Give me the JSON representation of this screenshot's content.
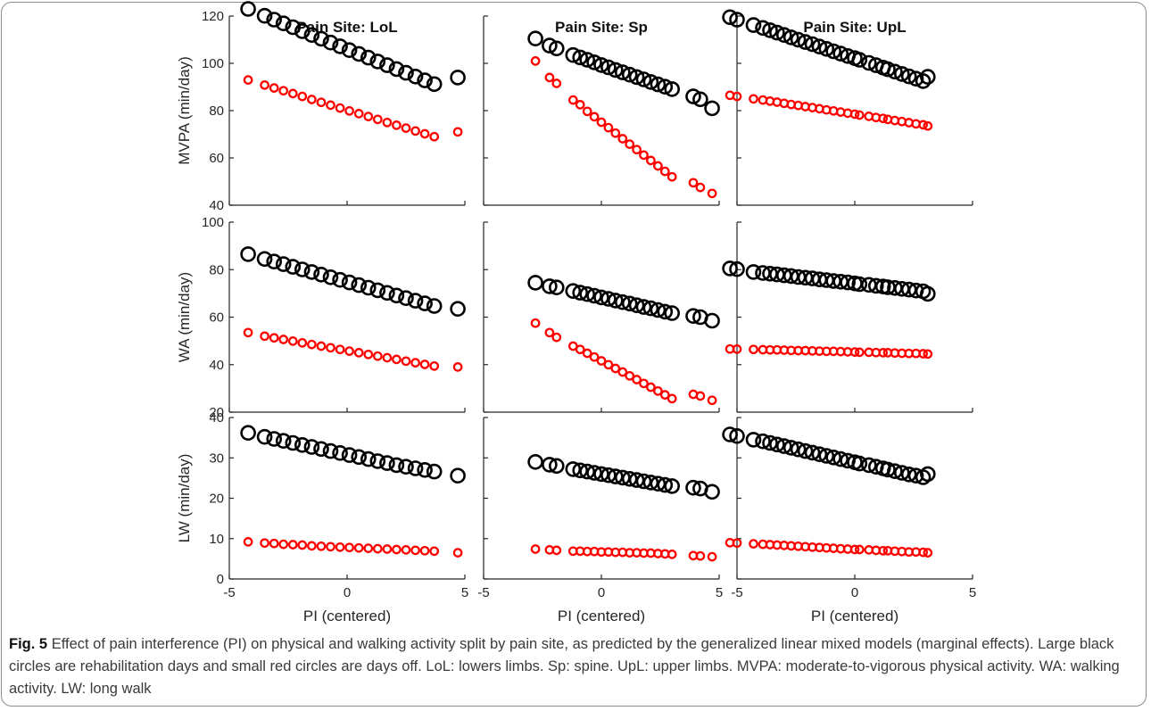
{
  "figure": {
    "caption_label": "Fig. 5",
    "caption_text": "Effect of pain interference (PI) on physical and walking activity split by pain site, as predicted by the generalized linear mixed models (marginal effects). Large black circles are rehabilitation days and small red circles are days off. LoL: lowers limbs. Sp: spine. UpL: upper limbs. MVPA: moderate-to-vigorous physical activity. WA: walking activity. LW: long walk"
  },
  "colors": {
    "rehab": "#000000",
    "off": "#ff0000",
    "axis": "#262626"
  },
  "chart_data": {
    "type": "scatter",
    "columns": [
      "Pain Site: LoL",
      "Pain Site: Sp",
      "Pain Site: UpL"
    ],
    "rows": [
      "MVPA (min/day)",
      "WA (min/day)",
      "LW (min/day)"
    ],
    "xlabel": "PI (centered)",
    "xlim": [
      -5,
      5
    ],
    "xticks": [
      -5,
      0,
      5
    ],
    "grid": false,
    "panels": [
      {
        "row": 0,
        "col": 0,
        "ylim": [
          40,
          120
        ],
        "yticks": [
          40,
          60,
          80,
          100,
          120
        ],
        "x": [
          -4.2,
          -3.5,
          -3.1,
          -2.7,
          -2.3,
          -1.9,
          -1.5,
          -1.1,
          -0.7,
          -0.3,
          0.1,
          0.5,
          0.9,
          1.3,
          1.7,
          2.1,
          2.5,
          2.9,
          3.3,
          3.7,
          4.7
        ],
        "series": [
          {
            "name": "rehab",
            "values": [
              123,
              120.1,
              118.5,
              116.9,
              115.3,
              113.6,
              112.0,
              110.4,
              108.8,
              107.2,
              105.6,
              104.0,
              102.4,
              100.8,
              99.2,
              97.6,
              96.0,
              94.4,
              92.8,
              91.2,
              94
            ]
          },
          {
            "name": "off",
            "values": [
              93,
              90.8,
              89.6,
              88.4,
              87.2,
              86.0,
              84.7,
              83.5,
              82.3,
              81.1,
              79.9,
              78.7,
              77.5,
              76.3,
              75.0,
              73.8,
              72.6,
              71.4,
              70.2,
              69.0,
              71
            ]
          }
        ]
      },
      {
        "row": 0,
        "col": 1,
        "ylim": [
          40,
          120
        ],
        "yticks": [
          40,
          60,
          80,
          100,
          120
        ],
        "x": [
          -2.8,
          -2.2,
          -1.9,
          -1.2,
          -0.9,
          -0.6,
          -0.3,
          0.0,
          0.3,
          0.6,
          0.9,
          1.2,
          1.5,
          1.8,
          2.1,
          2.4,
          2.7,
          3.0,
          3.9,
          4.2,
          4.7
        ],
        "series": [
          {
            "name": "rehab",
            "values": [
              110.5,
              107.5,
              106.3,
              103.5,
              102.5,
              101.5,
              100.4,
              99.3,
              98.3,
              97.2,
              96.2,
              95.2,
              94.2,
              93.2,
              92.1,
              91.1,
              90.1,
              89.1,
              86.0,
              84.8,
              81
            ]
          },
          {
            "name": "off",
            "values": [
              101,
              94,
              91.5,
              84.5,
              82.5,
              79.7,
              77.4,
              75.1,
              72.8,
              70.5,
              68.1,
              65.8,
              63.5,
              61.2,
              58.9,
              56.6,
              54.3,
              52.0,
              49.5,
              47.5,
              45
            ]
          }
        ]
      },
      {
        "row": 0,
        "col": 2,
        "ylim": [
          40,
          120
        ],
        "yticks": [
          40,
          60,
          80,
          100,
          120
        ],
        "x": [
          -5.3,
          -5.0,
          -4.3,
          -3.9,
          -3.6,
          -3.3,
          -3.0,
          -2.7,
          -2.4,
          -2.1,
          -1.8,
          -1.5,
          -1.2,
          -0.9,
          -0.6,
          -0.3,
          0.0,
          0.2,
          0.6,
          0.9,
          1.2,
          1.4,
          1.7,
          2.0,
          2.3,
          2.6,
          2.9,
          3.1
        ],
        "series": [
          {
            "name": "rehab",
            "values": [
              119.5,
              118.5,
              116.2,
              115.0,
              114.0,
              113.0,
              112.0,
              111.0,
              110.0,
              109.0,
              108.1,
              107.1,
              106.1,
              105.1,
              104.1,
              103.1,
              102.2,
              101.5,
              100.2,
              99.2,
              98.2,
              97.5,
              96.5,
              95.5,
              94.5,
              93.5,
              92.5,
              94.3
            ]
          },
          {
            "name": "off",
            "values": [
              86.5,
              86.0,
              85.0,
              84.5,
              84.0,
              83.6,
              83.1,
              82.6,
              82.2,
              81.7,
              81.3,
              80.8,
              80.3,
              79.9,
              79.4,
              78.9,
              78.5,
              78.1,
              77.6,
              77.1,
              76.7,
              76.3,
              75.8,
              75.4,
              74.9,
              74.4,
              74.0,
              73.5
            ]
          }
        ]
      },
      {
        "row": 1,
        "col": 0,
        "ylim": [
          20,
          100
        ],
        "yticks": [
          20,
          40,
          60,
          80,
          100
        ],
        "x": [
          -4.2,
          -3.5,
          -3.1,
          -2.7,
          -2.3,
          -1.9,
          -1.5,
          -1.1,
          -0.7,
          -0.3,
          0.1,
          0.5,
          0.9,
          1.3,
          1.7,
          2.1,
          2.5,
          2.9,
          3.3,
          3.7,
          4.7
        ],
        "series": [
          {
            "name": "rehab",
            "values": [
              86.5,
              84.5,
              83.4,
              82.3,
              81.2,
              80.1,
              79.0,
              77.9,
              76.8,
              75.7,
              74.6,
              73.5,
              72.4,
              71.3,
              70.2,
              69.1,
              68.0,
              66.9,
              65.8,
              64.7,
              63.5
            ]
          },
          {
            "name": "off",
            "values": [
              53.5,
              52.0,
              51.3,
              50.6,
              49.9,
              49.2,
              48.5,
              47.8,
              47.1,
              46.4,
              45.7,
              45.0,
              44.3,
              43.6,
              42.9,
              42.2,
              41.5,
              40.8,
              40.1,
              39.4,
              39.0
            ]
          }
        ]
      },
      {
        "row": 1,
        "col": 1,
        "ylim": [
          20,
          100
        ],
        "yticks": [
          20,
          40,
          60,
          80,
          100
        ],
        "x": [
          -2.8,
          -2.2,
          -1.9,
          -1.2,
          -0.9,
          -0.6,
          -0.3,
          0.0,
          0.3,
          0.6,
          0.9,
          1.2,
          1.5,
          1.8,
          2.1,
          2.4,
          2.7,
          3.0,
          3.9,
          4.2,
          4.7
        ],
        "series": [
          {
            "name": "rehab",
            "values": [
              74.5,
              73.0,
              72.5,
              71.0,
              70.3,
              69.7,
              69.0,
              68.3,
              67.7,
              67.0,
              66.3,
              65.7,
              65.0,
              64.3,
              63.7,
              63.0,
              62.3,
              61.7,
              60.5,
              60.0,
              58.5
            ]
          },
          {
            "name": "off",
            "values": [
              57.5,
              53.5,
              51.5,
              47.8,
              46.4,
              44.8,
              43.2,
              41.6,
              40.0,
              38.4,
              36.9,
              35.3,
              33.7,
              32.1,
              30.5,
              28.9,
              27.3,
              25.7,
              27.5,
              26.8,
              25.0
            ]
          }
        ]
      },
      {
        "row": 1,
        "col": 2,
        "ylim": [
          20,
          100
        ],
        "yticks": [
          20,
          40,
          60,
          80,
          100
        ],
        "x": [
          -5.3,
          -5.0,
          -4.3,
          -3.9,
          -3.6,
          -3.3,
          -3.0,
          -2.7,
          -2.4,
          -2.1,
          -1.8,
          -1.5,
          -1.2,
          -0.9,
          -0.6,
          -0.3,
          0.0,
          0.2,
          0.6,
          0.9,
          1.2,
          1.4,
          1.7,
          2.0,
          2.3,
          2.6,
          2.9,
          3.1
        ],
        "series": [
          {
            "name": "rehab",
            "values": [
              80.5,
              80.2,
              79.0,
              78.6,
              78.3,
              78.0,
              77.6,
              77.3,
              76.9,
              76.6,
              76.3,
              75.9,
              75.6,
              75.2,
              74.9,
              74.6,
              74.2,
              73.9,
              73.6,
              73.2,
              72.9,
              72.6,
              72.3,
              71.9,
              71.6,
              71.2,
              70.9,
              69.8
            ]
          },
          {
            "name": "off",
            "values": [
              46.6,
              46.5,
              46.4,
              46.3,
              46.2,
              46.2,
              46.1,
              46.0,
              45.9,
              45.9,
              45.8,
              45.7,
              45.6,
              45.6,
              45.5,
              45.4,
              45.3,
              45.2,
              45.2,
              45.1,
              45.0,
              45.0,
              44.9,
              44.8,
              44.7,
              44.7,
              44.6,
              44.5
            ]
          }
        ]
      },
      {
        "row": 2,
        "col": 0,
        "ylim": [
          0,
          40
        ],
        "yticks": [
          0,
          10,
          20,
          30,
          40
        ],
        "x": [
          -4.2,
          -3.5,
          -3.1,
          -2.7,
          -2.3,
          -1.9,
          -1.5,
          -1.1,
          -0.7,
          -0.3,
          0.1,
          0.5,
          0.9,
          1.3,
          1.7,
          2.1,
          2.5,
          2.9,
          3.3,
          3.7,
          4.7
        ],
        "series": [
          {
            "name": "rehab",
            "values": [
              36.2,
              35.2,
              34.7,
              34.2,
              33.7,
              33.2,
              32.7,
              32.2,
              31.7,
              31.2,
              30.7,
              30.2,
              29.7,
              29.2,
              28.7,
              28.2,
              27.8,
              27.4,
              27.0,
              26.6,
              25.6
            ]
          },
          {
            "name": "off",
            "values": [
              9.2,
              8.9,
              8.8,
              8.6,
              8.5,
              8.4,
              8.2,
              8.1,
              8.0,
              7.9,
              7.8,
              7.7,
              7.6,
              7.5,
              7.4,
              7.3,
              7.2,
              7.1,
              7.0,
              6.9,
              6.5
            ]
          }
        ]
      },
      {
        "row": 2,
        "col": 1,
        "ylim": [
          0,
          40
        ],
        "yticks": [
          0,
          10,
          20,
          30,
          40
        ],
        "x": [
          -2.8,
          -2.2,
          -1.9,
          -1.2,
          -0.9,
          -0.6,
          -0.3,
          0.0,
          0.3,
          0.6,
          0.9,
          1.2,
          1.5,
          1.8,
          2.1,
          2.4,
          2.7,
          3.0,
          3.9,
          4.2,
          4.7
        ],
        "series": [
          {
            "name": "rehab",
            "values": [
              29.0,
              28.3,
              28.0,
              27.2,
              26.9,
              26.6,
              26.3,
              26.0,
              25.7,
              25.4,
              25.1,
              24.8,
              24.5,
              24.2,
              23.9,
              23.6,
              23.3,
              23.0,
              22.6,
              22.4,
              21.6
            ]
          },
          {
            "name": "off",
            "values": [
              7.4,
              7.2,
              7.1,
              6.9,
              6.9,
              6.8,
              6.8,
              6.7,
              6.7,
              6.6,
              6.6,
              6.5,
              6.5,
              6.4,
              6.4,
              6.3,
              6.2,
              6.1,
              5.8,
              5.7,
              5.5
            ]
          }
        ]
      },
      {
        "row": 2,
        "col": 2,
        "ylim": [
          0,
          40
        ],
        "yticks": [
          0,
          10,
          20,
          30,
          40
        ],
        "x": [
          -5.3,
          -5.0,
          -4.3,
          -3.9,
          -3.6,
          -3.3,
          -3.0,
          -2.7,
          -2.4,
          -2.1,
          -1.8,
          -1.5,
          -1.2,
          -0.9,
          -0.6,
          -0.3,
          0.0,
          0.2,
          0.6,
          0.9,
          1.2,
          1.4,
          1.7,
          2.0,
          2.3,
          2.6,
          2.9,
          3.1
        ],
        "series": [
          {
            "name": "rehab",
            "values": [
              35.8,
              35.4,
              34.5,
              34.1,
              33.7,
              33.3,
              32.9,
              32.5,
              32.1,
              31.7,
              31.3,
              30.9,
              30.5,
              30.1,
              29.7,
              29.3,
              28.9,
              28.6,
              28.2,
              27.8,
              27.4,
              27.1,
              26.7,
              26.3,
              25.9,
              25.6,
              25.2,
              26.0
            ]
          },
          {
            "name": "off",
            "values": [
              9.0,
              8.9,
              8.7,
              8.6,
              8.5,
              8.4,
              8.3,
              8.2,
              8.1,
              8.0,
              7.9,
              7.8,
              7.7,
              7.6,
              7.5,
              7.4,
              7.3,
              7.3,
              7.2,
              7.1,
              7.0,
              7.0,
              6.9,
              6.8,
              6.7,
              6.7,
              6.6,
              6.5
            ]
          }
        ]
      }
    ]
  }
}
